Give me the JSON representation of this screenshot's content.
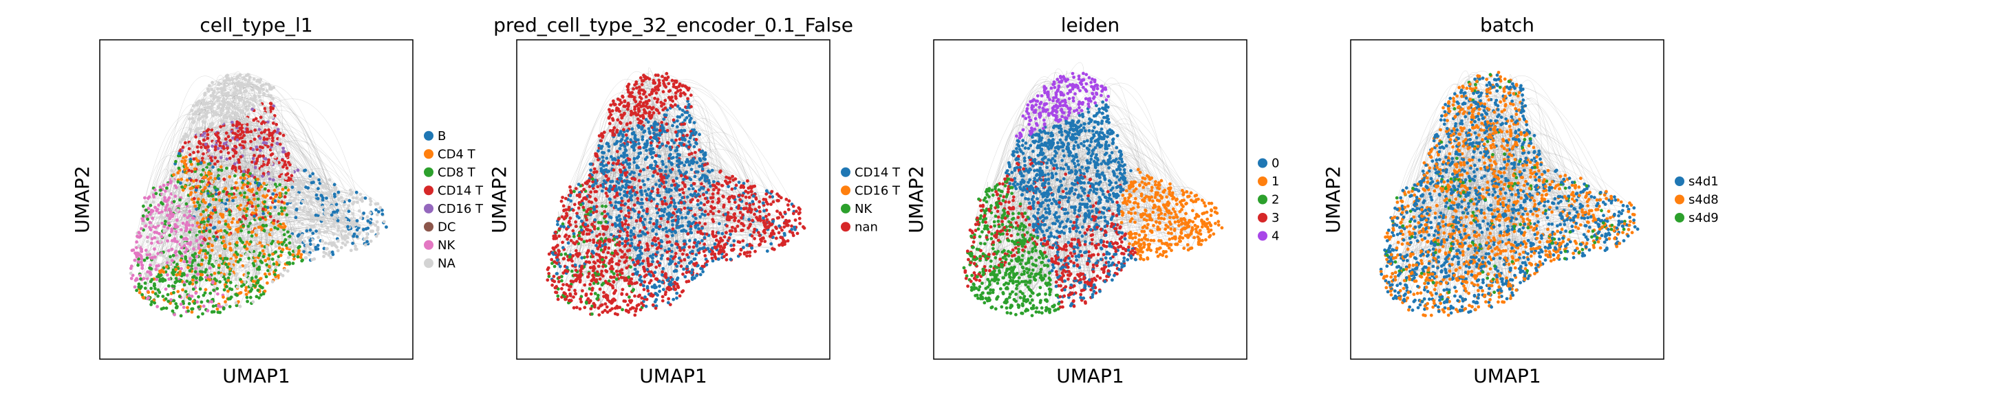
{
  "chart_data": [
    {
      "type": "scatter",
      "title": "cell_type_l1",
      "xlabel": "UMAP1",
      "ylabel": "UMAP2",
      "grid": false,
      "legend_placement": "right",
      "series": [
        {
          "name": "B",
          "color": "#1f77b4"
        },
        {
          "name": "CD4 T",
          "color": "#ff7f0e"
        },
        {
          "name": "CD8 T",
          "color": "#2ca02c"
        },
        {
          "name": "CD14 T",
          "color": "#d62728"
        },
        {
          "name": "CD16 T",
          "color": "#9467bd"
        },
        {
          "name": "DC",
          "color": "#8c564b"
        },
        {
          "name": "NK",
          "color": "#e377c2"
        },
        {
          "name": "NA",
          "color": "#d3d3d3"
        }
      ]
    },
    {
      "type": "scatter",
      "title": "pred_cell_type_32_encoder_0.1_False",
      "xlabel": "UMAP1",
      "ylabel": "UMAP2",
      "grid": false,
      "legend_placement": "right",
      "series": [
        {
          "name": "CD14 T",
          "color": "#1f77b4"
        },
        {
          "name": "CD16 T",
          "color": "#ff7f0e"
        },
        {
          "name": "NK",
          "color": "#2ca02c"
        },
        {
          "name": "nan",
          "color": "#d62728"
        }
      ]
    },
    {
      "type": "scatter",
      "title": "leiden",
      "xlabel": "UMAP1",
      "ylabel": "UMAP2",
      "grid": false,
      "legend_placement": "right",
      "series": [
        {
          "name": "0",
          "color": "#1f77b4"
        },
        {
          "name": "1",
          "color": "#ff7f0e"
        },
        {
          "name": "2",
          "color": "#2ca02c"
        },
        {
          "name": "3",
          "color": "#d62728"
        },
        {
          "name": "4",
          "color": "#a846e8"
        }
      ]
    },
    {
      "type": "scatter",
      "title": "batch",
      "xlabel": "UMAP1",
      "ylabel": "UMAP2",
      "grid": false,
      "legend_placement": "right",
      "series": [
        {
          "name": "s4d1",
          "color": "#1f77b4"
        },
        {
          "name": "s4d8",
          "color": "#ff7f0e"
        },
        {
          "name": "s4d9",
          "color": "#2ca02c"
        }
      ]
    }
  ],
  "edge_color": "#8c8c8c"
}
